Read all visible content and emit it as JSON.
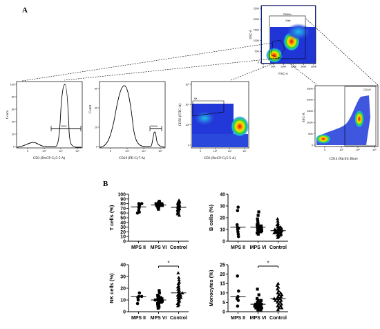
{
  "panel_a": {
    "label": "A",
    "gating": {
      "xlabel": "FSC-A",
      "ylabel": "SSC-A",
      "yticks": [
        "250K",
        "200K",
        "150K",
        "100K",
        "50K",
        "0"
      ],
      "xticks": [
        "0",
        "50K",
        "100K",
        "150K",
        "200K",
        "250K"
      ],
      "gate_pbmc": "PBMCs",
      "gate_inner": "Gate"
    },
    "cd3_hist": {
      "xlabel": "CD3 (PerCP-Cy5-5-A)",
      "ylabel": "Count",
      "gate": "CD3+",
      "yticks": [
        "100",
        "80",
        "60",
        "40",
        "20",
        "0"
      ],
      "xticks": [
        "0",
        "10³",
        "10⁴",
        "10⁵"
      ]
    },
    "cd19_hist": {
      "xlabel": "CD19 (PE-Cy7-A)",
      "ylabel": "Count",
      "gate": "CD19+",
      "yticks": [
        "60",
        "40",
        "20",
        "0"
      ],
      "xticks": [
        "0",
        "10³",
        "10⁴",
        "10⁵"
      ]
    },
    "cd56_dot": {
      "xlabel": "CD3 (PerCP-Cy5-5-A)",
      "ylabel": "CD56 (FITC-A)",
      "gate": "NK",
      "yticks": [
        "10⁵",
        "10⁴",
        "10³",
        "0"
      ],
      "xticks": [
        "0",
        "10³",
        "10⁴",
        "10⁵"
      ]
    },
    "cd14_dot": {
      "xlabel": "CD14 (Pacific Blue)",
      "ylabel": "SSC-A",
      "gate": "CD14+",
      "yticks": [
        "250K",
        "200K",
        "150K",
        "100K",
        "50K",
        "0"
      ],
      "xticks": [
        "0",
        "10³",
        "10⁴",
        "10⁵"
      ]
    }
  },
  "panel_b": {
    "label": "B"
  },
  "chart_data": [
    {
      "type": "scatter",
      "ylabel": "T cells (%)",
      "categories": [
        "MPS II",
        "MPS VI",
        "Control"
      ],
      "ylim": [
        0,
        100
      ],
      "yticks": [
        0,
        10,
        20,
        30,
        40,
        50,
        60,
        70,
        80,
        90,
        100
      ],
      "means": [
        73,
        77,
        72
      ],
      "significance": [],
      "series": [
        {
          "name": "MPS II",
          "marker": "circle",
          "values": [
            76,
            80,
            78,
            73,
            71,
            66,
            62,
            60,
            80
          ]
        },
        {
          "name": "MPS VI",
          "marker": "square",
          "values": [
            85,
            83,
            82,
            80,
            80,
            79,
            78,
            78,
            77,
            77,
            76,
            76,
            75,
            74,
            73,
            72,
            70,
            68,
            80,
            76
          ]
        },
        {
          "name": "Control",
          "marker": "triangle",
          "values": [
            87,
            85,
            84,
            83,
            82,
            81,
            80,
            79,
            78,
            77,
            76,
            75,
            74,
            73,
            72,
            71,
            70,
            69,
            68,
            67,
            66,
            65,
            63,
            61,
            60,
            58,
            55
          ]
        }
      ]
    },
    {
      "type": "scatter",
      "ylabel": "B cells (%)",
      "categories": [
        "MPS II",
        "MPS VI",
        "Control"
      ],
      "ylim": [
        0,
        40
      ],
      "yticks": [
        0,
        10,
        20,
        30,
        40
      ],
      "means": [
        12,
        12,
        9
      ],
      "significance": [],
      "series": [
        {
          "name": "MPS II",
          "marker": "circle",
          "values": [
            29,
            26,
            14,
            12,
            11,
            10,
            8,
            6,
            4
          ]
        },
        {
          "name": "MPS VI",
          "marker": "square",
          "values": [
            25,
            22,
            19,
            17,
            15,
            14,
            13,
            13,
            12,
            12,
            11,
            11,
            10,
            10,
            9,
            9,
            8,
            8,
            7,
            6
          ]
        },
        {
          "name": "Control",
          "marker": "triangle",
          "values": [
            19,
            17,
            15,
            14,
            13,
            12,
            12,
            11,
            11,
            10,
            10,
            10,
            9,
            9,
            9,
            8,
            8,
            8,
            7,
            7,
            7,
            6,
            6,
            5,
            5,
            4,
            3
          ]
        }
      ]
    },
    {
      "type": "scatter",
      "ylabel": "NK cells (%)",
      "categories": [
        "MPS II",
        "MPS VI",
        "Control"
      ],
      "ylim": [
        0,
        40
      ],
      "yticks": [
        0,
        10,
        20,
        30,
        40
      ],
      "means": [
        13,
        10,
        16
      ],
      "significance": [
        {
          "from": 1,
          "to": 2,
          "label": "*"
        }
      ],
      "series": [
        {
          "name": "MPS II",
          "marker": "circle",
          "values": [
            16,
            13,
            13,
            12,
            10,
            7
          ]
        },
        {
          "name": "MPS VI",
          "marker": "square",
          "values": [
            18,
            16,
            14,
            13,
            12,
            12,
            11,
            11,
            10,
            10,
            10,
            9,
            9,
            8,
            8,
            7,
            6,
            5,
            4,
            3
          ]
        },
        {
          "name": "Control",
          "marker": "triangle",
          "values": [
            33,
            29,
            27,
            25,
            24,
            22,
            21,
            20,
            19,
            18,
            17,
            16,
            16,
            15,
            14,
            14,
            13,
            12,
            12,
            11,
            10,
            9,
            8,
            7,
            6,
            5
          ]
        }
      ]
    },
    {
      "type": "scatter",
      "ylabel": "Monocytes (%)",
      "categories": [
        "MPS II",
        "MPS VI",
        "Control"
      ],
      "ylim": [
        0,
        25
      ],
      "yticks": [
        0,
        5,
        10,
        15,
        20,
        25
      ],
      "means": [
        8,
        4,
        7
      ],
      "significance": [
        {
          "from": 1,
          "to": 2,
          "label": "*"
        }
      ],
      "series": [
        {
          "name": "MPS II",
          "marker": "circle",
          "values": [
            19,
            11,
            8,
            7,
            6,
            3
          ]
        },
        {
          "name": "MPS VI",
          "marker": "square",
          "values": [
            12,
            9,
            7,
            6,
            6,
            5,
            5,
            4,
            4,
            4,
            3,
            3,
            3,
            2,
            2,
            2,
            1,
            1
          ]
        },
        {
          "name": "Control",
          "marker": "triangle",
          "values": [
            15,
            14,
            13,
            12,
            11,
            10,
            10,
            9,
            9,
            8,
            8,
            7,
            7,
            7,
            6,
            6,
            6,
            5,
            5,
            4,
            4,
            3,
            3,
            2,
            2,
            1
          ]
        }
      ]
    }
  ]
}
